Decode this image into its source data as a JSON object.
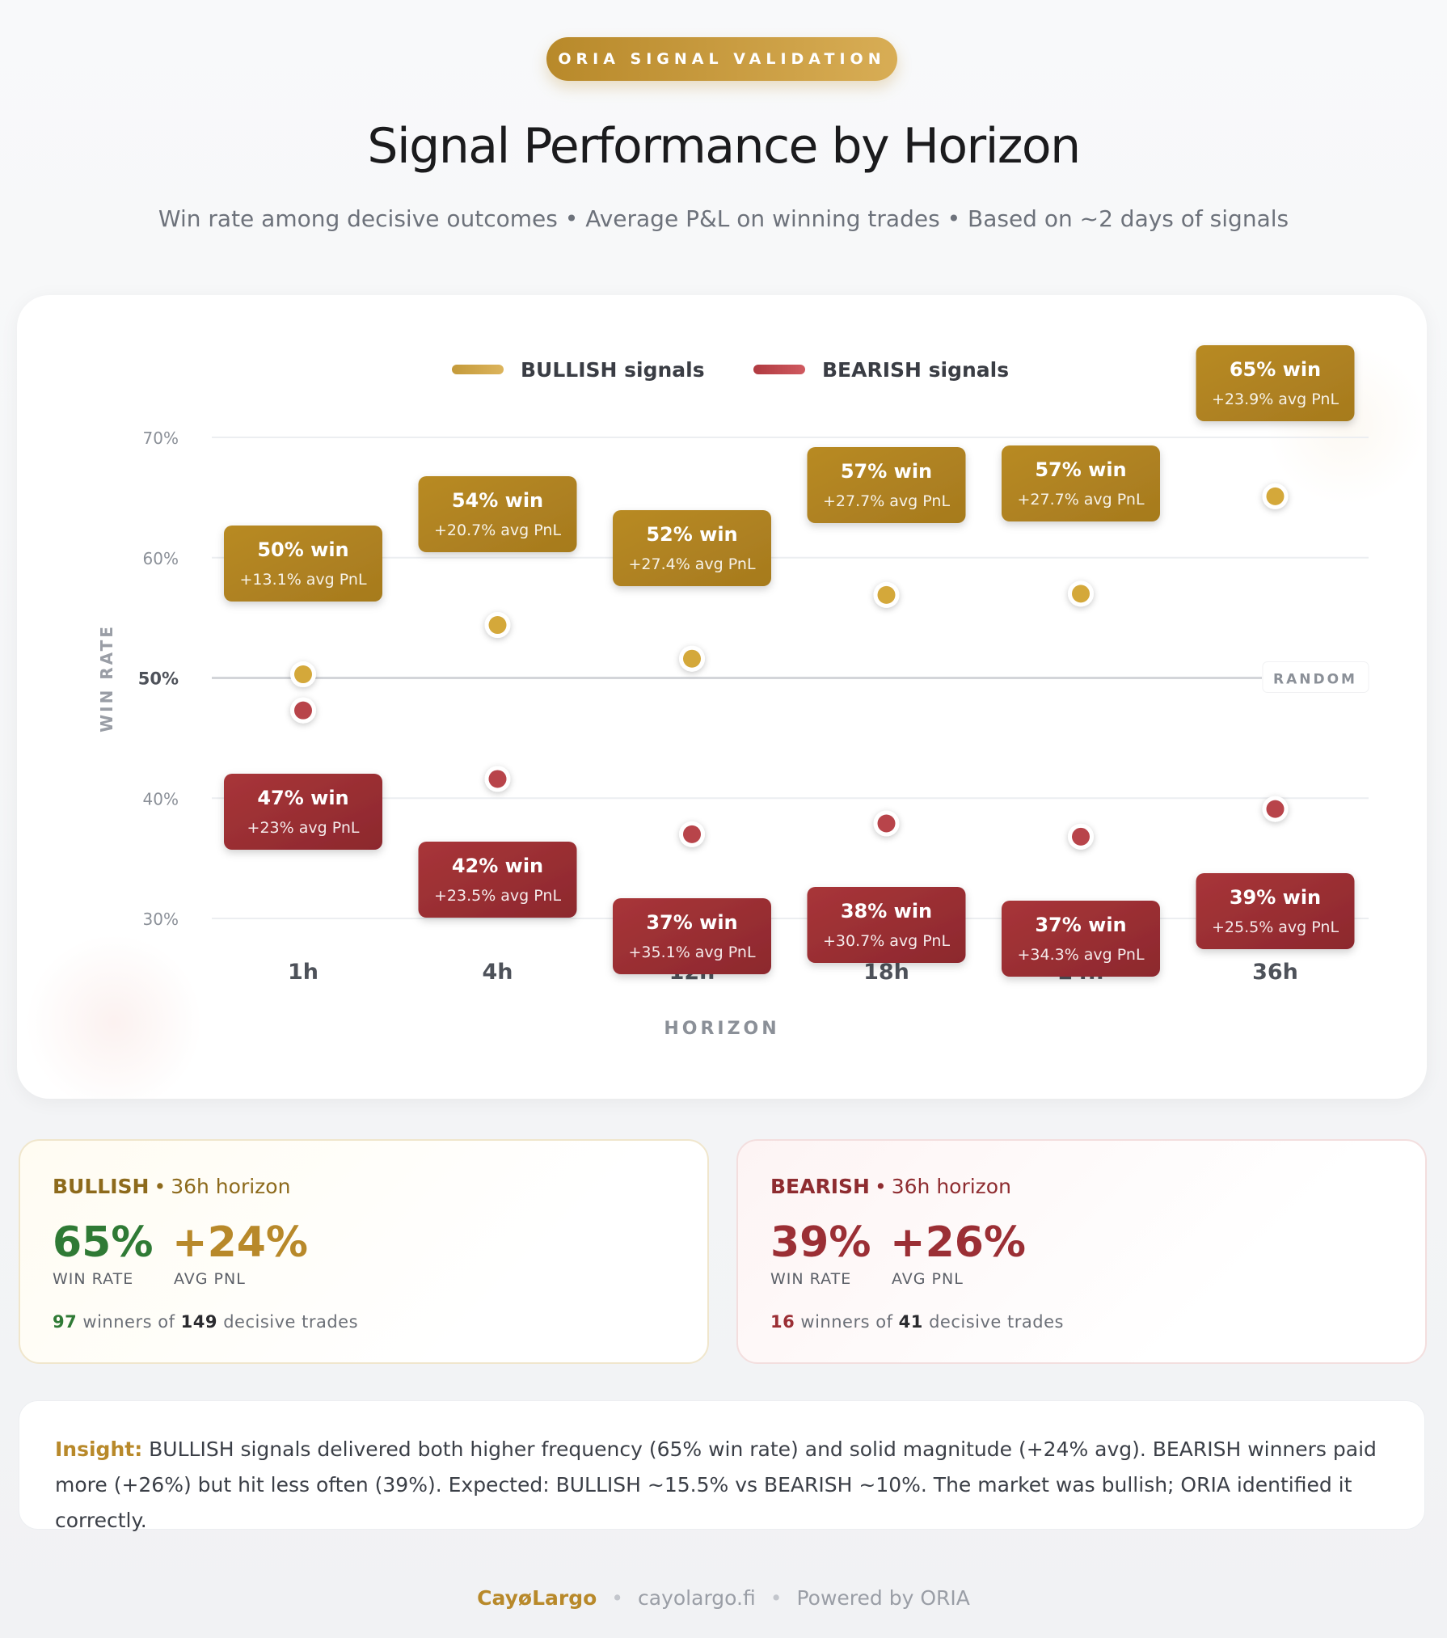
{
  "badge": "ORIA SIGNAL VALIDATION",
  "title": "Signal Performance by Horizon",
  "subtitle": "Win rate among decisive outcomes • Average P&L on winning trades • Based on ~2 days of signals",
  "colors": {
    "bullish": "#b8892a",
    "bullish_dot": "#d4a83a",
    "bearish": "#9b2f35",
    "bearish_dot": "#b8444a",
    "win_green": "#2f7a35"
  },
  "chart_data": {
    "type": "scatter",
    "xlabel": "HORIZON",
    "ylabel": "WIN RATE",
    "categories": [
      "1h",
      "4h",
      "12h",
      "18h",
      "24h",
      "36h"
    ],
    "ylim": [
      25,
      75
    ],
    "yticks": [
      "70%",
      "60%",
      "50%",
      "40%",
      "30%"
    ],
    "ytick_values": [
      70,
      60,
      50,
      40,
      30
    ],
    "reference_line": {
      "value": 50,
      "label": "RANDOM"
    },
    "legend": {
      "placement": "top",
      "entries": [
        "BULLISH signals",
        "BEARISH signals"
      ]
    },
    "grid": true,
    "series": [
      {
        "name": "BULLISH signals",
        "values": [
          50.3,
          54.4,
          51.6,
          56.9,
          57.0,
          65.1
        ],
        "labels": [
          "50% win",
          "54% win",
          "52% win",
          "57% win",
          "57% win",
          "65% win"
        ],
        "pnl_labels": [
          "+13.1% avg PnL",
          "+20.7% avg PnL",
          "+27.4% avg PnL",
          "+27.7% avg PnL",
          "+27.7% avg PnL",
          "+23.9% avg PnL"
        ]
      },
      {
        "name": "BEARISH signals",
        "values": [
          47.3,
          41.6,
          37.0,
          37.9,
          36.8,
          39.1
        ],
        "labels": [
          "47% win",
          "42% win",
          "37% win",
          "38% win",
          "37% win",
          "39% win"
        ],
        "pnl_labels": [
          "+23% avg PnL",
          "+23.5% avg PnL",
          "+35.1% avg PnL",
          "+30.7% avg PnL",
          "+34.3% avg PnL",
          "+25.5% avg PnL"
        ]
      }
    ]
  },
  "bullish_card": {
    "name": "BULLISH",
    "horizon": "36h horizon",
    "win_rate": "65%",
    "win_rate_label": "WIN RATE",
    "avg_pnl": "+24%",
    "avg_pnl_label": "AVG PNL",
    "winners": "97",
    "winners_text": "winners of",
    "total": "149",
    "total_text": "decisive trades"
  },
  "bearish_card": {
    "name": "BEARISH",
    "horizon": "36h horizon",
    "win_rate": "39%",
    "win_rate_label": "WIN RATE",
    "avg_pnl": "+26%",
    "avg_pnl_label": "AVG PNL",
    "winners": "16",
    "winners_text": "winners of",
    "total": "41",
    "total_text": "decisive trades"
  },
  "insight": {
    "label": "Insight:",
    "text": "BULLISH signals delivered both higher frequency (65% win rate) and solid magnitude (+24% avg). BEARISH winners paid more (+26%) but hit less often (39%). Expected: BULLISH ~15.5% vs BEARISH ~10%. The market was bullish; ORIA identified it correctly."
  },
  "footer": {
    "brand": "CayøLargo",
    "site": "cayolargo.fi",
    "powered": "Powered by ORIA"
  }
}
